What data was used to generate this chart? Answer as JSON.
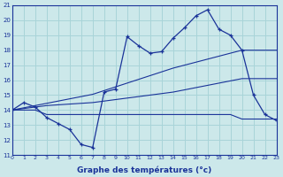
{
  "xlabel": "Graphe des températures (°c)",
  "bg_color": "#cce8ea",
  "grid_color": "#a8d4d8",
  "line_color": "#1a3399",
  "xmin": 0,
  "xmax": 23,
  "ymin": 11,
  "ymax": 21,
  "hours": [
    0,
    1,
    2,
    3,
    4,
    5,
    6,
    7,
    8,
    9,
    10,
    11,
    12,
    13,
    14,
    15,
    16,
    17,
    18,
    19,
    20,
    21,
    22,
    23
  ],
  "temp_actual": [
    14.0,
    14.5,
    14.2,
    13.5,
    13.1,
    12.7,
    11.7,
    11.5,
    15.2,
    15.4,
    18.9,
    18.3,
    17.8,
    17.9,
    18.8,
    19.5,
    20.3,
    20.7,
    19.4,
    19.0,
    18.0,
    15.0,
    13.7,
    13.3
  ],
  "temp_min": [
    14.0,
    14.0,
    14.0,
    13.7,
    13.7,
    13.7,
    13.7,
    13.7,
    13.7,
    13.7,
    13.7,
    13.7,
    13.7,
    13.7,
    13.7,
    13.7,
    13.7,
    13.7,
    13.7,
    13.7,
    13.4,
    13.4,
    13.4,
    13.4
  ],
  "trend_low": [
    14.0,
    14.1,
    14.2,
    14.3,
    14.35,
    14.4,
    14.45,
    14.5,
    14.6,
    14.7,
    14.8,
    14.9,
    15.0,
    15.1,
    15.2,
    15.35,
    15.5,
    15.65,
    15.8,
    15.95,
    16.1,
    16.1,
    16.1,
    16.1
  ],
  "trend_high": [
    14.0,
    14.15,
    14.3,
    14.45,
    14.6,
    14.75,
    14.9,
    15.05,
    15.3,
    15.55,
    15.8,
    16.05,
    16.3,
    16.55,
    16.8,
    17.0,
    17.2,
    17.4,
    17.6,
    17.8,
    18.0,
    18.0,
    18.0,
    18.0
  ]
}
